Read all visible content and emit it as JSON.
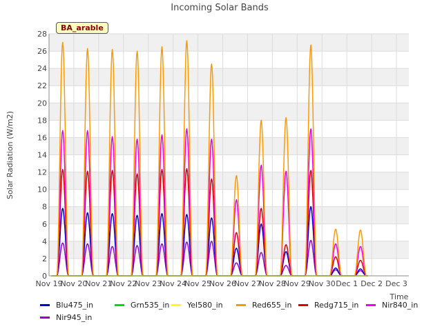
{
  "chart_data": {
    "type": "line",
    "title": "Incoming Solar Bands",
    "xlabel": "Time",
    "ylabel": "Solar Radiation (W/m2)",
    "ylim": [
      0,
      28
    ],
    "yticks": [
      0,
      2,
      4,
      6,
      8,
      10,
      12,
      14,
      16,
      18,
      20,
      22,
      24,
      26,
      28
    ],
    "xlim": [
      0,
      14.5
    ],
    "x_tick_labels": [
      "Nov 19",
      "Nov 20",
      "Nov 21",
      "Nov 22",
      "Nov 23",
      "Nov 24",
      "Nov 25",
      "Nov 26",
      "Nov 27",
      "Nov 28",
      "Nov 29",
      "Nov 30",
      "Dec 1",
      "Dec 2",
      "Dec 3"
    ],
    "x_tick_values": [
      0,
      1,
      2,
      3,
      4,
      5,
      6,
      7,
      8,
      9,
      10,
      11,
      12,
      13,
      14
    ],
    "grid": true,
    "legend_position": "bottom",
    "annotation": "BA_arable",
    "series": [
      {
        "name": "Blu475_in",
        "color": "#0000dd",
        "peaks": [
          7.8,
          7.3,
          7.2,
          7.0,
          7.2,
          7.1,
          6.7,
          3.2,
          6.0,
          2.8,
          8.0,
          0.9,
          0.8
        ]
      },
      {
        "name": "Grn535_in",
        "color": "#00dd00",
        "peaks": [
          0,
          0,
          0,
          0,
          0,
          0,
          0,
          0,
          0,
          0,
          0,
          0,
          0
        ]
      },
      {
        "name": "Yel580_in",
        "color": "#ffff00",
        "peaks": [
          0,
          0,
          0,
          0,
          0,
          0,
          0,
          0,
          0,
          0,
          0,
          0,
          0
        ]
      },
      {
        "name": "Red655_in",
        "color": "#ff9900",
        "peaks": [
          27.0,
          26.3,
          26.2,
          26.0,
          26.5,
          27.2,
          24.5,
          11.6,
          18.0,
          18.3,
          26.7,
          5.4,
          5.3
        ]
      },
      {
        "name": "Redg715_in",
        "color": "#dd0000",
        "peaks": [
          12.3,
          12.1,
          12.2,
          11.8,
          12.3,
          12.4,
          11.2,
          5.0,
          7.8,
          3.6,
          12.2,
          2.2,
          1.8
        ]
      },
      {
        "name": "Nir840_in",
        "color": "#ee00ee",
        "peaks": [
          16.8,
          16.8,
          16.1,
          15.8,
          16.3,
          17.0,
          15.8,
          8.8,
          12.8,
          12.1,
          17.0,
          3.7,
          3.4
        ]
      },
      {
        "name": "Nir945_in",
        "color": "#9900cc",
        "peaks": [
          3.8,
          3.7,
          3.4,
          3.5,
          3.7,
          3.9,
          4.0,
          1.5,
          2.7,
          1.2,
          4.1,
          0.7,
          0.6
        ]
      }
    ],
    "day_centers": [
      0.55,
      1.55,
      2.55,
      3.55,
      4.55,
      5.55,
      6.55,
      7.55,
      8.55,
      9.55,
      10.55,
      11.55,
      12.55
    ]
  }
}
